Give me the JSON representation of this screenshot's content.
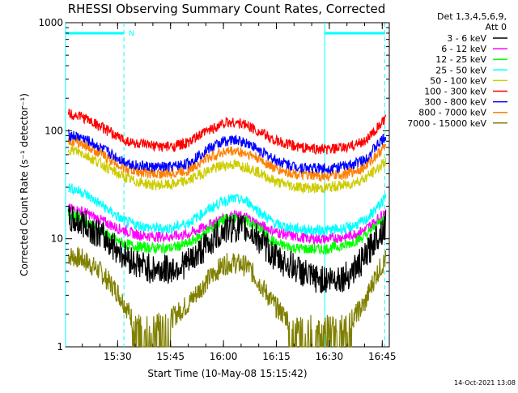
{
  "chart_data": {
    "type": "line",
    "title": "RHESSI Observing Summary Count Rates, Corrected",
    "xlabel": "Start Time (10-May-08 15:15:42)",
    "ylabel": "Corrected Count Rate (s⁻¹ detector⁻¹)",
    "y_scale": "log",
    "ylim": [
      1,
      1000
    ],
    "xlim_minutes": [
      15.25,
      107.0
    ],
    "x_tick_labels": [
      "15:30",
      "15:45",
      "16:00",
      "16:15",
      "16:30",
      "16:45"
    ],
    "x_tick_minutes": [
      30,
      45,
      60,
      75,
      90,
      105
    ],
    "y_tick_labels": [
      "1",
      "10",
      "100",
      "1000"
    ],
    "y_tick_values": [
      1,
      10,
      100,
      1000
    ],
    "legend_header": [
      "Det 1,3,4,5,6,9,",
      "Att 0"
    ],
    "legend_position": "right",
    "annotation": "N",
    "night_intervals": [
      [
        15.25,
        31.8
      ],
      [
        88.7,
        105.7
      ]
    ],
    "night_color": "#00ffff",
    "timestamp": "14-Oct-2021 13:08",
    "x_minutes": [
      16,
      20,
      25,
      30,
      32,
      35,
      40,
      45,
      50,
      55,
      60,
      63,
      67,
      70,
      75,
      80,
      85,
      88,
      90,
      95,
      100,
      103,
      106
    ],
    "series": [
      {
        "name": "3 - 6 keV",
        "color": "#000000",
        "values": [
          15,
          14,
          11,
          8,
          7,
          6,
          5.2,
          5.2,
          6,
          8.5,
          12,
          12.8,
          12,
          10,
          6.5,
          5.5,
          4.3,
          4.2,
          4.2,
          4.5,
          6.5,
          10,
          13.5
        ]
      },
      {
        "name": "6 - 12 keV",
        "color": "#ff00ff",
        "values": [
          19,
          18,
          15,
          12.5,
          12,
          11,
          10.5,
          10.5,
          11,
          13,
          15.5,
          16.5,
          15.5,
          13.5,
          11.5,
          10.5,
          10,
          10,
          10,
          10.5,
          12,
          14.5,
          18
        ]
      },
      {
        "name": "12 - 25 keV",
        "color": "#00ff00",
        "values": [
          17,
          15.5,
          12,
          9.5,
          9,
          8.5,
          8.2,
          8.2,
          9,
          11.5,
          15,
          15.5,
          14.5,
          12.5,
          9,
          8.2,
          8,
          8,
          8.2,
          8.8,
          10.5,
          13,
          16
        ]
      },
      {
        "name": "25 - 50 keV",
        "color": "#00ffff",
        "values": [
          30,
          27,
          21,
          16,
          14.5,
          13.5,
          12.5,
          12.5,
          14,
          18,
          22.5,
          23.5,
          22,
          18,
          13.5,
          12.5,
          12,
          12,
          12,
          12.5,
          14.5,
          18.5,
          24
        ]
      },
      {
        "name": "50 - 100 keV",
        "color": "#cccc00",
        "values": [
          68,
          62,
          50,
          40,
          37,
          34,
          31.5,
          31.5,
          34.5,
          42,
          48,
          48.5,
          46,
          41,
          33.5,
          30.5,
          29.5,
          29.5,
          30,
          31.5,
          36,
          43,
          52
        ]
      },
      {
        "name": "100 - 300 keV",
        "color": "#ff0000",
        "values": [
          145,
          135,
          110,
          88,
          82,
          76,
          72,
          71,
          77,
          98,
          118,
          120,
          112,
          98,
          80,
          72,
          68,
          67,
          67,
          70,
          80,
          100,
          130
        ]
      },
      {
        "name": "300 - 800 keV",
        "color": "#0000ff",
        "values": [
          92,
          86,
          70,
          56,
          52,
          48,
          46,
          46,
          50,
          66,
          80,
          82,
          77,
          66,
          53,
          47,
          45,
          45,
          45,
          47,
          54,
          70,
          88
        ]
      },
      {
        "name": "800 - 7000 keV",
        "color": "#ff8000",
        "values": [
          82,
          76,
          62,
          49,
          45,
          42,
          40,
          40,
          43,
          55,
          64,
          65,
          61,
          55,
          44,
          40,
          38,
          38,
          38,
          40,
          46,
          58,
          73
        ]
      },
      {
        "name": "7000 - 15000 keV",
        "color": "#808000",
        "values": [
          7,
          6.5,
          5,
          3.2,
          2.5,
          1.6,
          1.6,
          1.8,
          2.5,
          4,
          5.8,
          6,
          5.5,
          4,
          2.3,
          1.6,
          1.6,
          1.6,
          1.6,
          1.6,
          2.5,
          4.5,
          6.5
        ]
      }
    ]
  }
}
